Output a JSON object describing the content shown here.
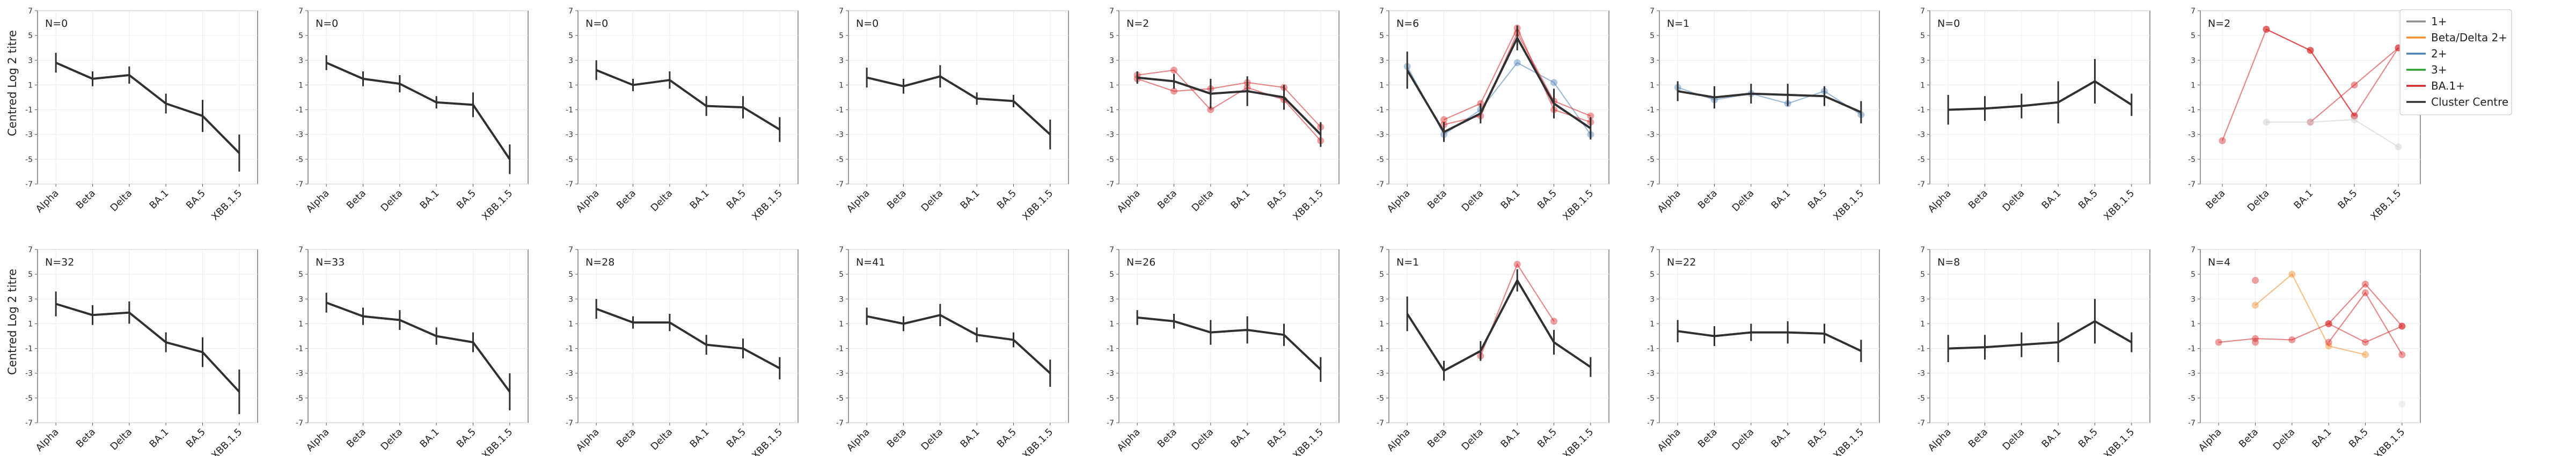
{
  "chart_data": {
    "type": "line",
    "title": "",
    "ylabel": "Centred Log 2 titre",
    "ylim": [
      -7,
      7
    ],
    "yticks": [
      -7,
      -5,
      -3,
      -1,
      1,
      3,
      5,
      7
    ],
    "grid": true,
    "legend": {
      "placement": "outside-top-right",
      "entries": [
        {
          "name": "1+",
          "color": "#8c8c8c"
        },
        {
          "name": "Beta/Delta 2+",
          "color": "#f28e2b"
        },
        {
          "name": "2+",
          "color": "#4c83b6"
        },
        {
          "name": "3+",
          "color": "#2ca02c"
        },
        {
          "name": "BA.1+",
          "color": "#d62728"
        },
        {
          "name": "Cluster Centre",
          "color": "#303030"
        }
      ]
    },
    "panels": [
      {
        "n_label": "N=0",
        "categories": [
          "Alpha",
          "Beta",
          "Delta",
          "BA.1",
          "BA.5",
          "XBB.1.5"
        ],
        "centre": [
          2.8,
          1.5,
          1.8,
          -0.5,
          -1.5,
          -4.5
        ],
        "err": [
          0.8,
          0.6,
          0.7,
          0.8,
          1.3,
          1.5
        ],
        "lines": []
      },
      {
        "n_label": "N=0",
        "categories": [
          "Alpha",
          "Beta",
          "Delta",
          "BA.1",
          "BA.5",
          "XBB.1.5"
        ],
        "centre": [
          2.8,
          1.5,
          1.1,
          -0.4,
          -0.6,
          -5.0
        ],
        "err": [
          0.6,
          0.6,
          0.7,
          0.5,
          1.0,
          1.2
        ],
        "lines": []
      },
      {
        "n_label": "N=0",
        "categories": [
          "Alpha",
          "Beta",
          "Delta",
          "BA.1",
          "BA.5",
          "XBB.1.5"
        ],
        "centre": [
          2.2,
          1.0,
          1.4,
          -0.7,
          -0.8,
          -2.6
        ],
        "err": [
          0.8,
          0.5,
          0.7,
          0.8,
          0.9,
          1.0
        ],
        "lines": []
      },
      {
        "n_label": "N=0",
        "categories": [
          "Alpha",
          "Beta",
          "Delta",
          "BA.1",
          "BA.5",
          "XBB.1.5"
        ],
        "centre": [
          1.6,
          0.9,
          1.7,
          -0.1,
          -0.3,
          -3.0
        ],
        "err": [
          0.8,
          0.6,
          0.9,
          0.5,
          0.5,
          1.2
        ],
        "lines": []
      },
      {
        "n_label": "N=2",
        "categories": [
          "Alpha",
          "Beta",
          "Delta",
          "BA.1",
          "BA.5",
          "XBB.1.5"
        ],
        "centre": [
          1.6,
          1.3,
          0.3,
          0.5,
          0.0,
          -3.0
        ],
        "err": [
          0.5,
          0.6,
          1.2,
          1.2,
          1.0,
          1.0
        ],
        "lines": [
          {
            "color": "#d62728",
            "values": [
              1.8,
              2.2,
              -1.0,
              0.8,
              -0.2,
              -3.5
            ]
          },
          {
            "color": "#d62728",
            "values": [
              1.5,
              0.5,
              0.7,
              1.2,
              0.8,
              -2.4
            ]
          }
        ]
      },
      {
        "n_label": "N=6",
        "categories": [
          "Alpha",
          "Beta",
          "Delta",
          "BA.1",
          "BA.5",
          "XBB.1.5"
        ],
        "centre": [
          2.2,
          -2.8,
          -1.3,
          4.8,
          -0.5,
          -2.5
        ],
        "err": [
          1.5,
          0.8,
          0.8,
          1.0,
          1.2,
          0.9
        ],
        "lines": [
          {
            "color": "#4c83b6",
            "values": [
              2.5,
              -3.0,
              -1.0,
              2.8,
              1.2,
              -3.0
            ]
          },
          {
            "color": "#d62728",
            "values": [
              null,
              -1.8,
              -0.5,
              5.6,
              -1.0,
              -2.0
            ]
          },
          {
            "color": "#d62728",
            "values": [
              null,
              -2.2,
              -1.5,
              5.2,
              -0.3,
              -1.5
            ]
          }
        ]
      },
      {
        "n_label": "N=1",
        "categories": [
          "Alpha",
          "Beta",
          "Delta",
          "BA.1",
          "BA.5",
          "XBB.1.5"
        ],
        "centre": [
          0.5,
          0.0,
          0.3,
          0.2,
          0.1,
          -1.2
        ],
        "err": [
          0.8,
          0.9,
          0.8,
          0.9,
          0.8,
          0.9
        ],
        "lines": [
          {
            "color": "#4c83b6",
            "values": [
              0.8,
              -0.2,
              0.3,
              -0.5,
              0.5,
              -1.4
            ]
          }
        ]
      },
      {
        "n_label": "N=0",
        "categories": [
          "Alpha",
          "Beta",
          "Delta",
          "BA.1",
          "BA.5",
          "XBB.1.5"
        ],
        "centre": [
          -1.0,
          -0.9,
          -0.7,
          -0.4,
          1.3,
          -0.6
        ],
        "err": [
          1.2,
          1.0,
          1.0,
          1.7,
          1.8,
          0.9
        ],
        "lines": []
      },
      {
        "n_label": "N=2",
        "categories": [
          "Beta",
          "Delta",
          "BA.1",
          "BA.5",
          "XBB.1.5"
        ],
        "centre": [
          null,
          null,
          null,
          null,
          null
        ],
        "err": [],
        "lines": [
          {
            "color": "#d62728",
            "values": [
              -3.5,
              5.5,
              3.8,
              -1.5,
              4.0
            ]
          },
          {
            "color": "#d62728",
            "values": [
              null,
              5.5,
              3.8,
              -1.5,
              null
            ]
          },
          {
            "color": "#d62728",
            "values": [
              null,
              null,
              -2.0,
              1.0,
              4.0
            ]
          },
          {
            "color": "#cccccc",
            "values": [
              null,
              -2.0,
              -2.0,
              -1.8,
              -4.0
            ]
          }
        ]
      },
      {
        "n_label": "N=32",
        "categories": [
          "Alpha",
          "Beta",
          "Delta",
          "BA.1",
          "BA.5",
          "XBB.1.5"
        ],
        "centre": [
          2.6,
          1.7,
          1.9,
          -0.5,
          -1.3,
          -4.5
        ],
        "err": [
          1.0,
          0.8,
          0.9,
          0.8,
          1.2,
          1.8
        ],
        "lines": []
      },
      {
        "n_label": "N=33",
        "categories": [
          "Alpha",
          "Beta",
          "Delta",
          "BA.1",
          "BA.5",
          "XBB.1.5"
        ],
        "centre": [
          2.7,
          1.6,
          1.3,
          0.0,
          -0.5,
          -4.5
        ],
        "err": [
          0.8,
          0.7,
          0.8,
          0.7,
          0.8,
          1.5
        ],
        "lines": []
      },
      {
        "n_label": "N=28",
        "categories": [
          "Alpha",
          "Beta",
          "Delta",
          "BA.1",
          "BA.5",
          "XBB.1.5"
        ],
        "centre": [
          2.2,
          1.1,
          1.1,
          -0.7,
          -1.0,
          -2.6
        ],
        "err": [
          0.8,
          0.5,
          0.7,
          0.8,
          0.8,
          0.9
        ],
        "lines": []
      },
      {
        "n_label": "N=41",
        "categories": [
          "Alpha",
          "Beta",
          "Delta",
          "BA.1",
          "BA.5",
          "XBB.1.5"
        ],
        "centre": [
          1.6,
          1.0,
          1.7,
          0.1,
          -0.3,
          -3.0
        ],
        "err": [
          0.7,
          0.6,
          0.9,
          0.6,
          0.6,
          1.1
        ],
        "lines": []
      },
      {
        "n_label": "N=26",
        "categories": [
          "Alpha",
          "Beta",
          "Delta",
          "BA.1",
          "BA.5",
          "XBB.1.5"
        ],
        "centre": [
          1.5,
          1.2,
          0.3,
          0.5,
          0.1,
          -2.7
        ],
        "err": [
          0.6,
          0.6,
          1.0,
          1.1,
          0.9,
          1.0
        ],
        "lines": []
      },
      {
        "n_label": "N=1",
        "categories": [
          "Alpha",
          "Beta",
          "Delta",
          "BA.1",
          "BA.5",
          "XBB.1.5"
        ],
        "centre": [
          1.8,
          -2.8,
          -1.2,
          4.5,
          -0.5,
          -2.5
        ],
        "err": [
          1.4,
          0.8,
          0.8,
          0.9,
          1.0,
          0.8
        ],
        "lines": [
          {
            "color": "#d62728",
            "values": [
              null,
              null,
              -1.6,
              5.8,
              1.2,
              null
            ]
          }
        ]
      },
      {
        "n_label": "N=22",
        "categories": [
          "Alpha",
          "Beta",
          "Delta",
          "BA.1",
          "BA.5",
          "XBB.1.5"
        ],
        "centre": [
          0.4,
          0.0,
          0.3,
          0.3,
          0.2,
          -1.2
        ],
        "err": [
          0.9,
          0.8,
          0.7,
          0.9,
          0.8,
          0.9
        ],
        "lines": []
      },
      {
        "n_label": "N=8",
        "categories": [
          "Alpha",
          "Beta",
          "Delta",
          "BA.1",
          "BA.5",
          "XBB.1.5"
        ],
        "centre": [
          -1.0,
          -0.9,
          -0.7,
          -0.5,
          1.2,
          -0.5
        ],
        "err": [
          1.1,
          1.0,
          1.0,
          1.6,
          1.8,
          0.8
        ],
        "lines": []
      },
      {
        "n_label": "N=4",
        "categories": [
          "Alpha",
          "Beta",
          "Delta",
          "BA.1",
          "BA.5",
          "XBB.1.5"
        ],
        "centre": [
          null,
          null,
          null,
          null,
          null,
          null
        ],
        "err": [],
        "lines": [
          {
            "color": "#f28e2b",
            "values": [
              null,
              2.5,
              5.0,
              -0.8,
              -1.5,
              null
            ]
          },
          {
            "color": "#d62728",
            "values": [
              -0.5,
              -0.2,
              -0.3,
              1.0,
              -0.5,
              0.8
            ]
          },
          {
            "color": "#d62728",
            "values": [
              null,
              4.5,
              null,
              1.0,
              4.2,
              0.8
            ]
          },
          {
            "color": "#d62728",
            "values": [
              null,
              -0.5,
              null,
              -0.5,
              3.5,
              -1.5
            ]
          },
          {
            "color": "#dddddd",
            "values": [
              null,
              null,
              null,
              null,
              null,
              -5.5
            ]
          }
        ]
      }
    ]
  }
}
